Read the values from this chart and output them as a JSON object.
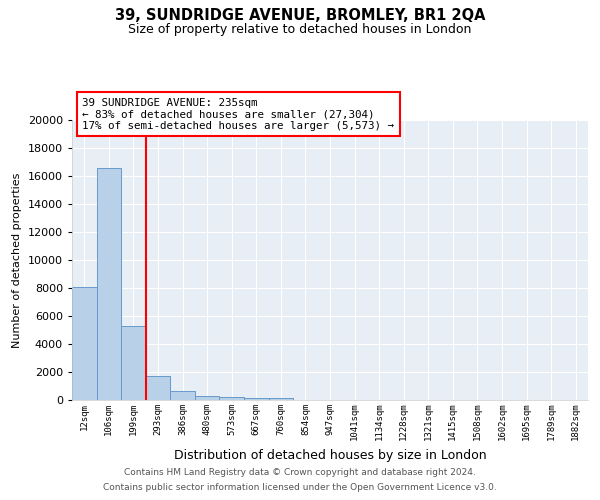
{
  "title1": "39, SUNDRIDGE AVENUE, BROMLEY, BR1 2QA",
  "title2": "Size of property relative to detached houses in London",
  "xlabel": "Distribution of detached houses by size in London",
  "ylabel": "Number of detached properties",
  "categories": [
    "12sqm",
    "106sqm",
    "199sqm",
    "293sqm",
    "386sqm",
    "480sqm",
    "573sqm",
    "667sqm",
    "760sqm",
    "854sqm",
    "947sqm",
    "1041sqm",
    "1134sqm",
    "1228sqm",
    "1321sqm",
    "1415sqm",
    "1508sqm",
    "1602sqm",
    "1695sqm",
    "1789sqm",
    "1882sqm"
  ],
  "values": [
    8050,
    16600,
    5300,
    1750,
    650,
    305,
    220,
    170,
    150,
    0,
    0,
    0,
    0,
    0,
    0,
    0,
    0,
    0,
    0,
    0,
    0
  ],
  "bar_color": "#b8d0e8",
  "bar_edge_color": "#6699cc",
  "red_line_x": 2.5,
  "annotation_line1": "39 SUNDRIDGE AVENUE: 235sqm",
  "annotation_line2": "← 83% of detached houses are smaller (27,304)",
  "annotation_line3": "17% of semi-detached houses are larger (5,573) →",
  "ylim": [
    0,
    20000
  ],
  "yticks": [
    0,
    2000,
    4000,
    6000,
    8000,
    10000,
    12000,
    14000,
    16000,
    18000,
    20000
  ],
  "background_color": "#e8eef5",
  "footer1": "Contains HM Land Registry data © Crown copyright and database right 2024.",
  "footer2": "Contains public sector information licensed under the Open Government Licence v3.0."
}
